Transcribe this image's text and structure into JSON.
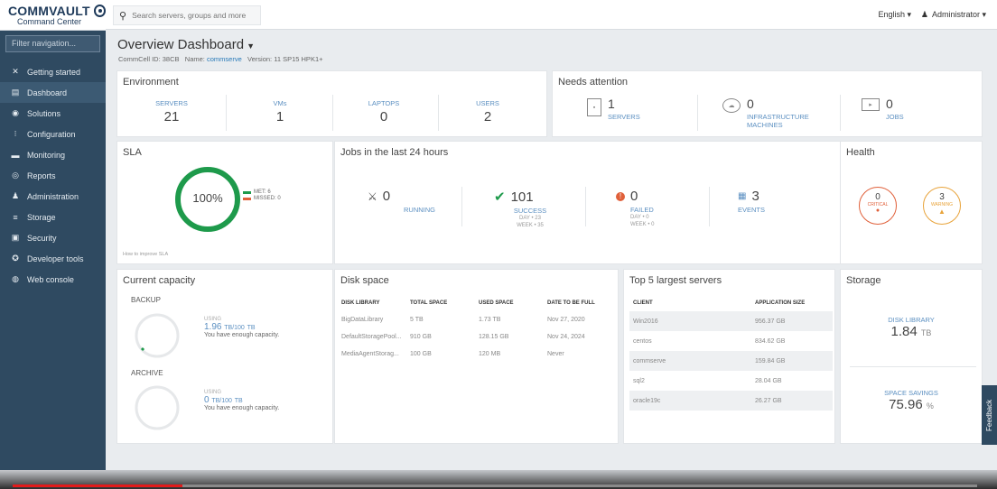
{
  "brand": {
    "name": "COMMVAULT",
    "subtitle": "Command Center"
  },
  "nav": {
    "filter_placeholder": "Filter navigation...",
    "items": [
      {
        "label": "Getting started",
        "icon": "✕"
      },
      {
        "label": "Dashboard",
        "icon": "▤"
      },
      {
        "label": "Solutions",
        "icon": "◉"
      },
      {
        "label": "Configuration",
        "icon": "⁝"
      },
      {
        "label": "Monitoring",
        "icon": "▬"
      },
      {
        "label": "Reports",
        "icon": "◎"
      },
      {
        "label": "Administration",
        "icon": "♟"
      },
      {
        "label": "Storage",
        "icon": "≡"
      },
      {
        "label": "Security",
        "icon": "▣"
      },
      {
        "label": "Developer tools",
        "icon": "✪"
      },
      {
        "label": "Web console",
        "icon": "◍"
      }
    ]
  },
  "topbar": {
    "search_placeholder": "Search servers, groups and more",
    "language": "English ▾",
    "user": "Administrator ▾"
  },
  "page": {
    "title": "Overview Dashboard",
    "commcell_label": "CommCell ID:",
    "commcell_id": "38CB",
    "name_label": "Name:",
    "name": "commserve",
    "version_label": "Version:",
    "version": "11 SP15 HPK1+"
  },
  "environment": {
    "title": "Environment",
    "metrics": [
      {
        "label": "SERVERS",
        "value": "21"
      },
      {
        "label": "VMs",
        "value": "1"
      },
      {
        "label": "LAPTOPS",
        "value": "0"
      },
      {
        "label": "USERS",
        "value": "2"
      }
    ]
  },
  "attention": {
    "title": "Needs attention",
    "items": [
      {
        "value": "1",
        "label": "SERVERS",
        "icon": "server-icon"
      },
      {
        "value": "0",
        "label": "INFRASTRUCTURE MACHINES",
        "icon": "cloud-icon"
      },
      {
        "value": "0",
        "label": "JOBS",
        "icon": "play-icon"
      }
    ]
  },
  "sla": {
    "title": "SLA",
    "percent": "100%",
    "met_label": "MET: 6",
    "missed_label": "MISSED: 0",
    "met_color": "#1e9a4b",
    "missed_color": "#e0603a",
    "link": "How to improve SLA"
  },
  "jobs": {
    "title": "Jobs in the last 24 hours",
    "running": {
      "value": "0",
      "label": "RUNNING"
    },
    "success": {
      "value": "101",
      "label": "SUCCESS",
      "day": "DAY • 23",
      "week": "WEEK • 35"
    },
    "failed": {
      "value": "0",
      "label": "FAILED",
      "day": "DAY • 0",
      "week": "WEEK • 0"
    },
    "events": {
      "value": "3",
      "label": "EVENTS"
    }
  },
  "health": {
    "title": "Health",
    "critical": {
      "value": "0",
      "label": "CRITICAL",
      "color": "#e0603a"
    },
    "warning": {
      "value": "3",
      "label": "WARNING",
      "color": "#e8a33a"
    }
  },
  "capacity": {
    "title": "Current capacity",
    "backup": {
      "label": "BACKUP",
      "using": "USING",
      "amount": "1.96",
      "amount_tb": "TB/100",
      "unit": "TB",
      "note": "You have enough capacity."
    },
    "archive": {
      "label": "ARCHIVE",
      "using": "USING",
      "amount": "0",
      "amount_tb": "TB/100",
      "unit": "TB",
      "note": "You have enough capacity."
    }
  },
  "disk": {
    "title": "Disk space",
    "headers": [
      "DISK LIBRARY",
      "TOTAL SPACE",
      "USED SPACE",
      "DATE TO BE FULL"
    ],
    "rows": [
      [
        "BigDataLibrary",
        "5 TB",
        "1.73 TB",
        "Nov 27, 2020"
      ],
      [
        "DefaultStoragePool...",
        "910 GB",
        "128.15 GB",
        "Nov 24, 2024"
      ],
      [
        "MediaAgentStorag...",
        "100 GB",
        "120 MB",
        "Never"
      ]
    ]
  },
  "top5": {
    "title": "Top 5 largest servers",
    "headers": [
      "CLIENT",
      "APPLICATION SIZE"
    ],
    "rows": [
      [
        "Win2016",
        "956.37 GB"
      ],
      [
        "centos",
        "834.62 GB"
      ],
      [
        "commserve",
        "159.84 GB"
      ],
      [
        "sql2",
        "28.04 GB"
      ],
      [
        "oracle19c",
        "26.27 GB"
      ]
    ]
  },
  "storage": {
    "title": "Storage",
    "disk_library_label": "DISK LIBRARY",
    "disk_library_value": "1.84",
    "disk_library_unit": "TB",
    "savings_label": "SPACE SAVINGS",
    "savings_value": "75.96",
    "savings_unit": "%"
  },
  "feedback": "Feedback"
}
